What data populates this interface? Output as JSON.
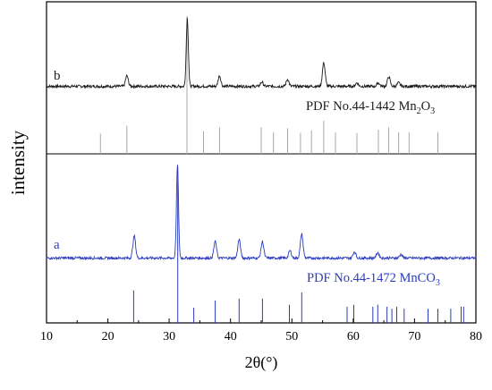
{
  "chart_data": [
    {
      "type": "line",
      "panel": "top",
      "trace_label": "b",
      "reference_label_prefix": "PDF No.44-1442 Mn",
      "reference_label_sub": "2",
      "reference_label_mid": "O",
      "reference_label_sub2": "3",
      "trace_color": "#1a1a1a",
      "stick_color": "#a8a8a8",
      "baseline": 0.5,
      "noise": 1.6,
      "peaks": [
        {
          "x": 23.1,
          "h": 12
        },
        {
          "x": 32.95,
          "h": 78
        },
        {
          "x": 38.2,
          "h": 12
        },
        {
          "x": 45.1,
          "h": 5
        },
        {
          "x": 49.3,
          "h": 8
        },
        {
          "x": 55.2,
          "h": 27
        },
        {
          "x": 60.6,
          "h": 4
        },
        {
          "x": 64.1,
          "h": 4
        },
        {
          "x": 65.8,
          "h": 11
        },
        {
          "x": 67.4,
          "h": 4
        }
      ],
      "reference_sticks": [
        {
          "x": 18.8,
          "h": 25
        },
        {
          "x": 23.1,
          "h": 35
        },
        {
          "x": 32.9,
          "h": 100
        },
        {
          "x": 35.6,
          "h": 28
        },
        {
          "x": 38.2,
          "h": 33
        },
        {
          "x": 45.0,
          "h": 33
        },
        {
          "x": 47.0,
          "h": 27
        },
        {
          "x": 49.3,
          "h": 32
        },
        {
          "x": 51.4,
          "h": 26
        },
        {
          "x": 53.2,
          "h": 29
        },
        {
          "x": 55.2,
          "h": 41
        },
        {
          "x": 57.1,
          "h": 27
        },
        {
          "x": 60.6,
          "h": 26
        },
        {
          "x": 64.1,
          "h": 30
        },
        {
          "x": 65.8,
          "h": 33
        },
        {
          "x": 67.4,
          "h": 27
        },
        {
          "x": 69.1,
          "h": 27
        },
        {
          "x": 73.8,
          "h": 27
        }
      ]
    },
    {
      "type": "line",
      "panel": "bottom",
      "trace_label": "a",
      "reference_label_prefix": "PDF No.44-1472 MnCO",
      "reference_label_sub": "3",
      "trace_color": "#2a3bbf",
      "stick_color": "#2a3bbf",
      "baseline": 0.5,
      "noise": 1.4,
      "peaks": [
        {
          "x": 24.3,
          "h": 24
        },
        {
          "x": 31.35,
          "h": 100
        },
        {
          "x": 37.5,
          "h": 18
        },
        {
          "x": 41.4,
          "h": 20
        },
        {
          "x": 45.2,
          "h": 18
        },
        {
          "x": 49.7,
          "h": 8
        },
        {
          "x": 51.6,
          "h": 26
        },
        {
          "x": 60.2,
          "h": 7
        },
        {
          "x": 64.0,
          "h": 6
        },
        {
          "x": 67.8,
          "h": 4
        }
      ],
      "reference_sticks": [
        {
          "x": 24.2,
          "h": 32
        },
        {
          "x": 31.4,
          "h": 100
        },
        {
          "x": 34.0,
          "h": 15
        },
        {
          "x": 37.5,
          "h": 22
        },
        {
          "x": 41.4,
          "h": 24
        },
        {
          "x": 45.2,
          "h": 24
        },
        {
          "x": 49.6,
          "h": 18
        },
        {
          "x": 51.6,
          "h": 30
        },
        {
          "x": 59.0,
          "h": 16
        },
        {
          "x": 60.1,
          "h": 18
        },
        {
          "x": 63.2,
          "h": 16
        },
        {
          "x": 64.0,
          "h": 18
        },
        {
          "x": 65.5,
          "h": 16
        },
        {
          "x": 66.3,
          "h": 14
        },
        {
          "x": 67.1,
          "h": 16
        },
        {
          "x": 68.3,
          "h": 14
        },
        {
          "x": 72.2,
          "h": 14
        },
        {
          "x": 73.8,
          "h": 14
        },
        {
          "x": 75.9,
          "h": 14
        },
        {
          "x": 77.6,
          "h": 16
        },
        {
          "x": 78.0,
          "h": 16
        }
      ]
    }
  ],
  "axes": {
    "xlabel": "2θ(°)",
    "ylabel": "intensity",
    "xlim": [
      10,
      80
    ],
    "xticks": [
      "10",
      "20",
      "30",
      "40",
      "50",
      "60",
      "70",
      "80"
    ]
  }
}
